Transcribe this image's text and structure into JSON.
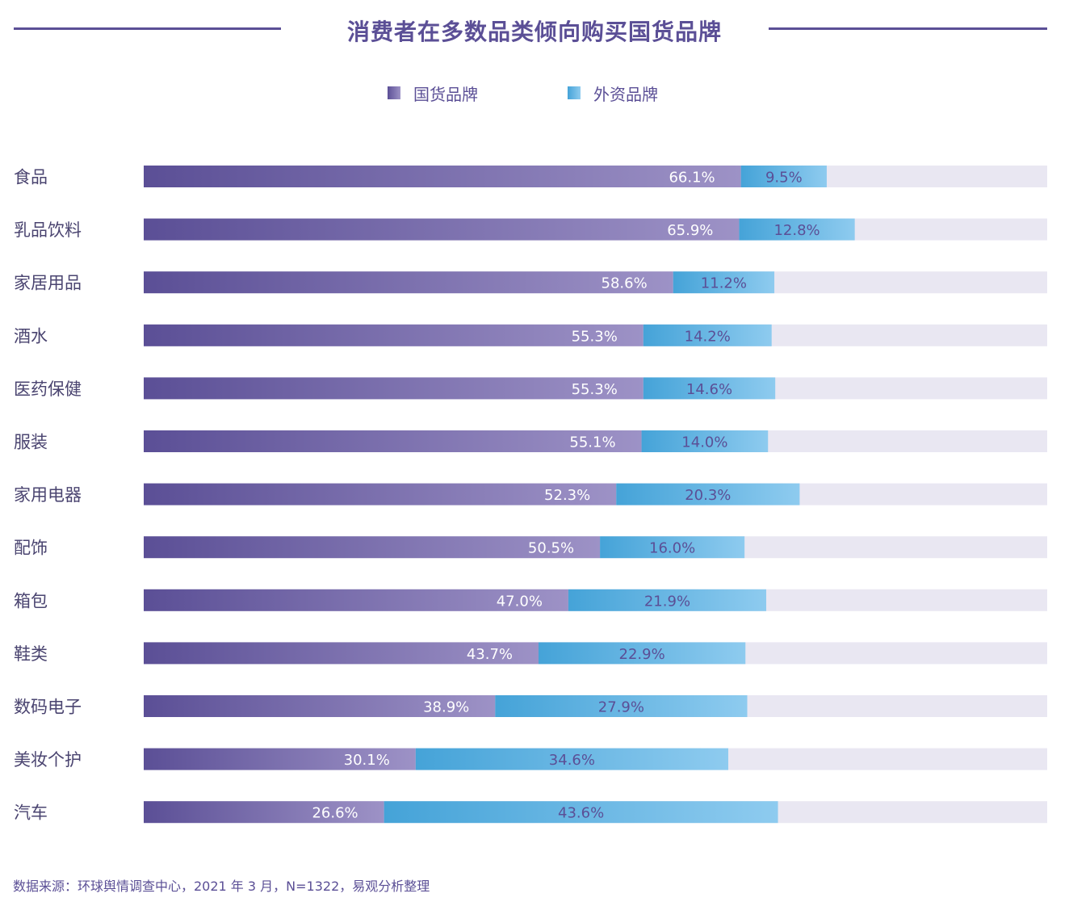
{
  "chart_data": {
    "type": "bar",
    "orientation": "horizontal",
    "stacked": true,
    "title": "消费者在多数品类倾向购买国货品牌",
    "xlim": [
      0,
      100
    ],
    "categories": [
      "食品",
      "乳品饮料",
      "家居用品",
      "酒水",
      "医药保健",
      "服装",
      "家用电器",
      "配饰",
      "箱包",
      "鞋类",
      "数码电子",
      "美妆个护",
      "汽车"
    ],
    "series": [
      {
        "name": "国货品牌",
        "values": [
          66.1,
          65.9,
          58.6,
          55.3,
          55.3,
          55.1,
          52.3,
          50.5,
          47.0,
          43.7,
          38.9,
          30.1,
          26.6
        ],
        "labels": [
          "66.1%",
          "65.9%",
          "58.6%",
          "55.3%",
          "55.3%",
          "55.1%",
          "52.3%",
          "50.5%",
          "47.0%",
          "43.7%",
          "38.9%",
          "30.1%",
          "26.6%"
        ]
      },
      {
        "name": "外资品牌",
        "values": [
          9.5,
          12.8,
          11.2,
          14.2,
          14.6,
          14.0,
          20.3,
          16.0,
          21.9,
          22.9,
          27.9,
          34.6,
          43.6
        ],
        "labels": [
          "9.5%",
          "12.8%",
          "11.2%",
          "14.2%",
          "14.6%",
          "14.0%",
          "20.3%",
          "16.0%",
          "21.9%",
          "22.9%",
          "27.9%",
          "34.6%",
          "43.6%"
        ]
      }
    ]
  },
  "legend": {
    "domestic": "国货品牌",
    "foreign": "外资品牌"
  },
  "source": "数据来源：环球舆情调查中心，2021 年 3 月，N=1322，易观分析整理",
  "colors": {
    "domestic_start": "#5b4f96",
    "domestic_end": "#9d92c6",
    "foreign_start": "#45a3d8",
    "foreign_end": "#8ecbef",
    "track": "#e9e7f2",
    "title": "#5b4f96"
  }
}
